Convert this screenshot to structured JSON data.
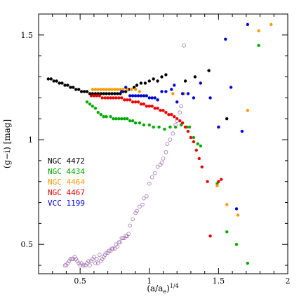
{
  "chart_data": {
    "type": "scatter",
    "xlabel": "(a/a",
    "xlabel_sub": "e",
    "xlabel_sup": ")",
    "xlabel_sup_exp": "1/4",
    "ylabel": "(g−i) [mag]",
    "xlim": [
      0.2,
      2.0
    ],
    "ylim": [
      0.36,
      1.6
    ],
    "x_ticks": [
      {
        "value": 0.5,
        "label": "0.5"
      },
      {
        "value": 1.0,
        "label": "1"
      },
      {
        "value": 1.5,
        "label": "1.5"
      },
      {
        "value": 2.0,
        "label": "2"
      }
    ],
    "y_ticks": [
      {
        "value": 0.5,
        "label": "0.5"
      },
      {
        "value": 1.0,
        "label": "1"
      },
      {
        "value": 1.5,
        "label": "1.5"
      }
    ],
    "legend": {
      "placement": "left-middle"
    },
    "series": [
      {
        "name": "NGC 4472",
        "color": "#000000",
        "marker": "filled",
        "points": [
          [
            0.27,
            1.29
          ],
          [
            0.29,
            1.29
          ],
          [
            0.31,
            1.28
          ],
          [
            0.33,
            1.28
          ],
          [
            0.35,
            1.27
          ],
          [
            0.37,
            1.27
          ],
          [
            0.39,
            1.26
          ],
          [
            0.41,
            1.26
          ],
          [
            0.43,
            1.25
          ],
          [
            0.45,
            1.25
          ],
          [
            0.47,
            1.24
          ],
          [
            0.49,
            1.24
          ],
          [
            0.51,
            1.23
          ],
          [
            0.53,
            1.23
          ],
          [
            0.55,
            1.23
          ],
          [
            0.57,
            1.22
          ],
          [
            0.59,
            1.22
          ],
          [
            0.61,
            1.22
          ],
          [
            0.63,
            1.22
          ],
          [
            0.65,
            1.22
          ],
          [
            0.67,
            1.22
          ],
          [
            0.69,
            1.22
          ],
          [
            0.71,
            1.22
          ],
          [
            0.73,
            1.22
          ],
          [
            0.75,
            1.22
          ],
          [
            0.77,
            1.22
          ],
          [
            0.79,
            1.22
          ],
          [
            0.81,
            1.23
          ],
          [
            0.83,
            1.23
          ],
          [
            0.85,
            1.24
          ],
          [
            0.87,
            1.24
          ],
          [
            0.89,
            1.25
          ],
          [
            0.91,
            1.26
          ],
          [
            0.94,
            1.27
          ],
          [
            0.97,
            1.27
          ],
          [
            1.0,
            1.28
          ],
          [
            1.03,
            1.29
          ],
          [
            1.06,
            1.28
          ],
          [
            1.09,
            1.3
          ],
          [
            1.12,
            1.31
          ],
          [
            1.26,
            1.28
          ],
          [
            1.33,
            1.3
          ],
          [
            1.43,
            1.33
          ],
          [
            1.56,
            1.1
          ]
        ]
      },
      {
        "name": "NGC 4434",
        "color": "#00aa00",
        "marker": "filled",
        "points": [
          [
            0.55,
            1.18
          ],
          [
            0.57,
            1.17
          ],
          [
            0.59,
            1.16
          ],
          [
            0.61,
            1.15
          ],
          [
            0.63,
            1.13
          ],
          [
            0.65,
            1.12
          ],
          [
            0.67,
            1.11
          ],
          [
            0.69,
            1.11
          ],
          [
            0.72,
            1.11
          ],
          [
            0.74,
            1.1
          ],
          [
            0.76,
            1.1
          ],
          [
            0.78,
            1.1
          ],
          [
            0.8,
            1.1
          ],
          [
            0.82,
            1.1
          ],
          [
            0.84,
            1.1
          ],
          [
            0.86,
            1.09
          ],
          [
            0.88,
            1.09
          ],
          [
            0.9,
            1.08
          ],
          [
            0.93,
            1.08
          ],
          [
            0.96,
            1.07
          ],
          [
            1.0,
            1.07
          ],
          [
            1.03,
            1.06
          ],
          [
            1.07,
            1.06
          ],
          [
            1.11,
            1.05
          ],
          [
            1.15,
            1.06
          ],
          [
            1.19,
            1.06
          ],
          [
            1.23,
            1.07
          ],
          [
            1.27,
            1.06
          ],
          [
            1.29,
            1.06
          ],
          [
            1.32,
            1.01
          ],
          [
            1.35,
            0.98
          ],
          [
            1.37,
            0.97
          ],
          [
            1.49,
            0.79
          ],
          [
            1.56,
            0.56
          ],
          [
            1.63,
            0.5
          ],
          [
            1.71,
            0.41
          ],
          [
            1.79,
            1.45
          ]
        ]
      },
      {
        "name": "NGC 4464",
        "color": "#ff9900",
        "marker": "filled",
        "points": [
          [
            0.59,
            1.24
          ],
          [
            0.61,
            1.24
          ],
          [
            0.63,
            1.24
          ],
          [
            0.65,
            1.24
          ],
          [
            0.67,
            1.24
          ],
          [
            0.69,
            1.24
          ],
          [
            0.71,
            1.24
          ],
          [
            0.73,
            1.24
          ],
          [
            0.75,
            1.24
          ],
          [
            0.77,
            1.24
          ],
          [
            0.79,
            1.24
          ],
          [
            0.81,
            1.24
          ],
          [
            0.84,
            1.24
          ],
          [
            0.87,
            1.24
          ],
          [
            0.9,
            1.24
          ],
          [
            0.93,
            1.23
          ],
          [
            1.17,
            1.22
          ],
          [
            1.25,
            1.22
          ],
          [
            1.49,
            0.78
          ],
          [
            1.56,
            0.69
          ],
          [
            1.64,
            0.64
          ],
          [
            1.71,
            1.14
          ],
          [
            1.79,
            1.52
          ],
          [
            1.88,
            1.55
          ]
        ]
      },
      {
        "name": "NGC 4467",
        "color": "#ee0000",
        "marker": "filled",
        "points": [
          [
            0.58,
            1.21
          ],
          [
            0.6,
            1.21
          ],
          [
            0.62,
            1.21
          ],
          [
            0.64,
            1.21
          ],
          [
            0.66,
            1.2
          ],
          [
            0.68,
            1.2
          ],
          [
            0.7,
            1.2
          ],
          [
            0.72,
            1.2
          ],
          [
            0.74,
            1.2
          ],
          [
            0.76,
            1.2
          ],
          [
            0.78,
            1.2
          ],
          [
            0.8,
            1.2
          ],
          [
            0.82,
            1.19
          ],
          [
            0.84,
            1.19
          ],
          [
            0.86,
            1.19
          ],
          [
            0.88,
            1.18
          ],
          [
            0.9,
            1.18
          ],
          [
            0.92,
            1.18
          ],
          [
            0.94,
            1.17
          ],
          [
            0.96,
            1.17
          ],
          [
            0.98,
            1.16
          ],
          [
            1.0,
            1.16
          ],
          [
            1.02,
            1.16
          ],
          [
            1.04,
            1.15
          ],
          [
            1.06,
            1.15
          ],
          [
            1.08,
            1.14
          ],
          [
            1.1,
            1.14
          ],
          [
            1.12,
            1.13
          ],
          [
            1.14,
            1.12
          ],
          [
            1.16,
            1.12
          ],
          [
            1.18,
            1.11
          ],
          [
            1.2,
            1.1
          ],
          [
            1.22,
            1.09
          ],
          [
            1.24,
            1.08
          ],
          [
            1.26,
            1.06
          ],
          [
            1.28,
            1.04
          ],
          [
            1.3,
            1.01
          ],
          [
            1.32,
            0.99
          ],
          [
            1.34,
            0.95
          ],
          [
            1.36,
            0.91
          ],
          [
            1.38,
            0.87
          ],
          [
            1.42,
            0.8
          ],
          [
            1.44,
            0.54
          ],
          [
            1.5,
            0.8
          ],
          [
            1.52,
            0.81
          ]
        ]
      },
      {
        "name": "VCC 1199",
        "color": "#0000dd",
        "marker": "filled",
        "points": [
          [
            0.8,
            1.23
          ],
          [
            0.83,
            1.25
          ],
          [
            0.86,
            1.21
          ],
          [
            0.88,
            1.21
          ],
          [
            0.9,
            1.21
          ],
          [
            0.92,
            1.21
          ],
          [
            0.94,
            1.21
          ],
          [
            0.96,
            1.21
          ],
          [
            0.98,
            1.21
          ],
          [
            1.0,
            1.2
          ],
          [
            1.02,
            1.2
          ],
          [
            1.04,
            1.2
          ],
          [
            1.06,
            1.19
          ],
          [
            1.09,
            1.23
          ],
          [
            1.12,
            1.23
          ],
          [
            1.16,
            1.24
          ],
          [
            1.18,
            1.26
          ],
          [
            1.2,
            1.18
          ],
          [
            1.24,
            1.22
          ],
          [
            1.28,
            1.22
          ],
          [
            1.32,
            1.2
          ],
          [
            1.37,
            1.27
          ],
          [
            1.44,
            1.2
          ],
          [
            1.5,
            1.06
          ],
          [
            1.55,
            1.48
          ],
          [
            1.59,
            1.25
          ],
          [
            1.63,
            0.67
          ],
          [
            1.67,
            1.04
          ],
          [
            1.71,
            1.55
          ]
        ]
      },
      {
        "name": "",
        "color": "#a070b0",
        "marker": "open",
        "points": [
          [
            0.39,
            0.4
          ],
          [
            0.4,
            0.4
          ],
          [
            0.41,
            0.41
          ],
          [
            0.42,
            0.42
          ],
          [
            0.43,
            0.43
          ],
          [
            0.44,
            0.43
          ],
          [
            0.45,
            0.43
          ],
          [
            0.46,
            0.44
          ],
          [
            0.47,
            0.43
          ],
          [
            0.48,
            0.42
          ],
          [
            0.49,
            0.41
          ],
          [
            0.5,
            0.4
          ],
          [
            0.51,
            0.41
          ],
          [
            0.52,
            0.4
          ],
          [
            0.53,
            0.4
          ],
          [
            0.54,
            0.4
          ],
          [
            0.55,
            0.41
          ],
          [
            0.56,
            0.42
          ],
          [
            0.57,
            0.4
          ],
          [
            0.58,
            0.42
          ],
          [
            0.59,
            0.43
          ],
          [
            0.6,
            0.44
          ],
          [
            0.61,
            0.41
          ],
          [
            0.62,
            0.43
          ],
          [
            0.63,
            0.41
          ],
          [
            0.64,
            0.45
          ],
          [
            0.65,
            0.42
          ],
          [
            0.66,
            0.43
          ],
          [
            0.67,
            0.44
          ],
          [
            0.68,
            0.45
          ],
          [
            0.69,
            0.46
          ],
          [
            0.7,
            0.46
          ],
          [
            0.71,
            0.47
          ],
          [
            0.72,
            0.47
          ],
          [
            0.73,
            0.48
          ],
          [
            0.74,
            0.48
          ],
          [
            0.75,
            0.48
          ],
          [
            0.76,
            0.5
          ],
          [
            0.77,
            0.49
          ],
          [
            0.78,
            0.51
          ],
          [
            0.79,
            0.51
          ],
          [
            0.8,
            0.53
          ],
          [
            0.81,
            0.53
          ],
          [
            0.82,
            0.53
          ],
          [
            0.83,
            0.54
          ],
          [
            0.84,
            0.54
          ],
          [
            0.85,
            0.55
          ],
          [
            0.86,
            0.59
          ],
          [
            0.88,
            0.62
          ],
          [
            0.9,
            0.65
          ],
          [
            0.91,
            0.66
          ],
          [
            0.93,
            0.68
          ],
          [
            0.95,
            0.69
          ],
          [
            0.96,
            0.72
          ],
          [
            0.98,
            0.73
          ],
          [
            1.0,
            0.79
          ],
          [
            1.02,
            0.82
          ],
          [
            1.04,
            0.84
          ],
          [
            1.06,
            0.87
          ],
          [
            1.08,
            0.88
          ],
          [
            1.09,
            0.89
          ],
          [
            1.1,
            0.91
          ],
          [
            1.12,
            0.94
          ],
          [
            1.13,
            0.98
          ],
          [
            1.15,
            1.0
          ],
          [
            1.17,
            1.03
          ],
          [
            1.19,
            1.07
          ],
          [
            1.2,
            1.09
          ],
          [
            1.22,
            1.13
          ],
          [
            1.23,
            1.16
          ],
          [
            1.25,
            1.45
          ]
        ]
      }
    ]
  }
}
